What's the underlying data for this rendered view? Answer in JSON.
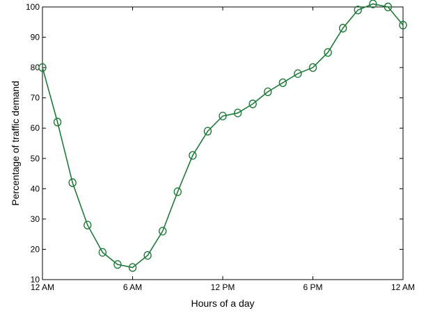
{
  "chart_data": {
    "type": "line",
    "title": "",
    "xlabel": "Hours of a day",
    "ylabel": "Percentage of traffic demand",
    "xlim": [
      0,
      24
    ],
    "ylim": [
      10,
      100
    ],
    "grid": false,
    "line_color": "#1f7a3a",
    "marker": "circle",
    "x_ticks": [
      {
        "value": 0,
        "label": "12 AM"
      },
      {
        "value": 6,
        "label": "6 AM"
      },
      {
        "value": 12,
        "label": "12 PM"
      },
      {
        "value": 18,
        "label": "6 PM"
      },
      {
        "value": 24,
        "label": "12 AM"
      }
    ],
    "y_ticks": [
      10,
      20,
      30,
      40,
      50,
      60,
      70,
      80,
      90,
      100
    ],
    "series": [
      {
        "x": [
          0,
          1,
          2,
          3,
          4,
          5,
          6,
          7,
          8,
          9,
          10,
          11,
          12,
          13,
          14,
          15,
          16,
          17,
          18,
          19,
          20,
          21,
          22,
          23,
          24
        ],
        "values": [
          80,
          62,
          42,
          28,
          19,
          15,
          14,
          18,
          26,
          39,
          51,
          59,
          64,
          65,
          68,
          72,
          75,
          78,
          80,
          85,
          93,
          99,
          101,
          100,
          94
        ]
      }
    ]
  }
}
